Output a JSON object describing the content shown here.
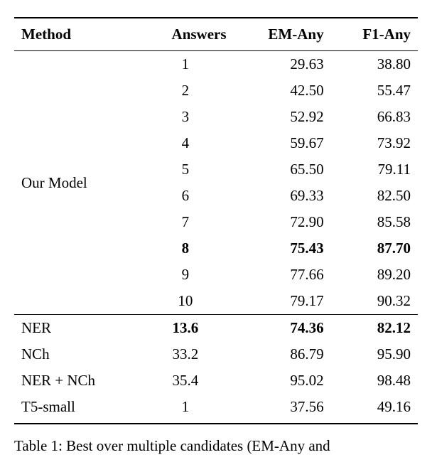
{
  "table": {
    "columns": [
      "Method",
      "Answers",
      "EM-Any",
      "F1-Any"
    ],
    "section1": {
      "method_label": "Our Model",
      "rows": [
        {
          "answers": "1",
          "em": "29.63",
          "f1": "38.80",
          "bold": false
        },
        {
          "answers": "2",
          "em": "42.50",
          "f1": "55.47",
          "bold": false
        },
        {
          "answers": "3",
          "em": "52.92",
          "f1": "66.83",
          "bold": false
        },
        {
          "answers": "4",
          "em": "59.67",
          "f1": "73.92",
          "bold": false
        },
        {
          "answers": "5",
          "em": "65.50",
          "f1": "79.11",
          "bold": false
        },
        {
          "answers": "6",
          "em": "69.33",
          "f1": "82.50",
          "bold": false
        },
        {
          "answers": "7",
          "em": "72.90",
          "f1": "85.58",
          "bold": false
        },
        {
          "answers": "8",
          "em": "75.43",
          "f1": "87.70",
          "bold": true
        },
        {
          "answers": "9",
          "em": "77.66",
          "f1": "89.20",
          "bold": false
        },
        {
          "answers": "10",
          "em": "79.17",
          "f1": "90.32",
          "bold": false
        }
      ]
    },
    "section2": {
      "rows": [
        {
          "method": "NER",
          "answers": "13.6",
          "em": "74.36",
          "f1": "82.12",
          "bold": true
        },
        {
          "method": "NCh",
          "answers": "33.2",
          "em": "86.79",
          "f1": "95.90",
          "bold": false
        },
        {
          "method": "NER + NCh",
          "answers": "35.4",
          "em": "95.02",
          "f1": "98.48",
          "bold": false
        },
        {
          "method": "T5-small",
          "answers": "1",
          "em": "37.56",
          "f1": "49.16",
          "bold": false
        }
      ]
    }
  },
  "caption_prefix": "Table 1: Best over multiple candidates (EM-Any and"
}
